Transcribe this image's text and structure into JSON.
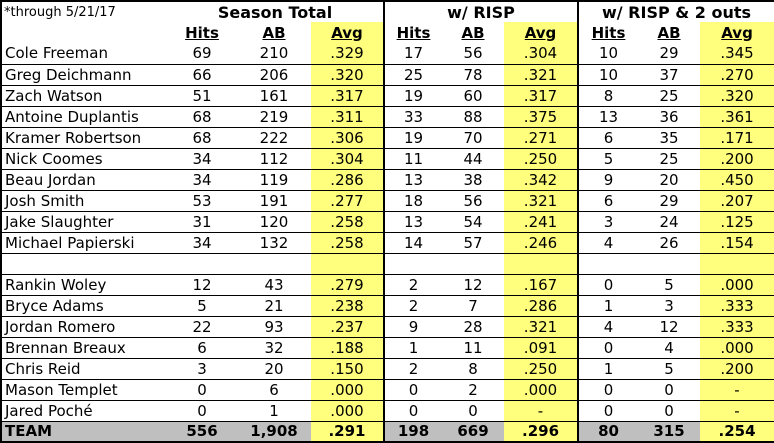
{
  "chart_data": {
    "type": "table",
    "note": "*through 5/21/17",
    "column_groups": [
      "Season Total",
      "w/ RISP",
      "w/ RISP & 2 outs"
    ],
    "sub_columns": [
      "Hits",
      "AB",
      "Avg"
    ],
    "rows": [
      {
        "name": "Cole Freeman",
        "values": [
          "69",
          "210",
          ".329",
          "17",
          "56",
          ".304",
          "10",
          "29",
          ".345"
        ]
      },
      {
        "name": "Greg Deichmann",
        "values": [
          "66",
          "206",
          ".320",
          "25",
          "78",
          ".321",
          "10",
          "37",
          ".270"
        ]
      },
      {
        "name": "Zach Watson",
        "values": [
          "51",
          "161",
          ".317",
          "19",
          "60",
          ".317",
          "8",
          "25",
          ".320"
        ]
      },
      {
        "name": "Antoine Duplantis",
        "values": [
          "68",
          "219",
          ".311",
          "33",
          "88",
          ".375",
          "13",
          "36",
          ".361"
        ]
      },
      {
        "name": "Kramer Robertson",
        "values": [
          "68",
          "222",
          ".306",
          "19",
          "70",
          ".271",
          "6",
          "35",
          ".171"
        ]
      },
      {
        "name": "Nick Coomes",
        "values": [
          "34",
          "112",
          ".304",
          "11",
          "44",
          ".250",
          "5",
          "25",
          ".200"
        ]
      },
      {
        "name": "Beau Jordan",
        "values": [
          "34",
          "119",
          ".286",
          "13",
          "38",
          ".342",
          "9",
          "20",
          ".450"
        ]
      },
      {
        "name": "Josh Smith",
        "values": [
          "53",
          "191",
          ".277",
          "18",
          "56",
          ".321",
          "6",
          "29",
          ".207"
        ]
      },
      {
        "name": "Jake Slaughter",
        "values": [
          "31",
          "120",
          ".258",
          "13",
          "54",
          ".241",
          "3",
          "24",
          ".125"
        ]
      },
      {
        "name": "Michael Papierski",
        "values": [
          "34",
          "132",
          ".258",
          "14",
          "57",
          ".246",
          "4",
          "26",
          ".154"
        ]
      },
      {
        "name": "",
        "values": [
          "",
          "",
          "",
          "",
          "",
          "",
          "",
          "",
          ""
        ]
      },
      {
        "name": "Rankin Woley",
        "values": [
          "12",
          "43",
          ".279",
          "2",
          "12",
          ".167",
          "0",
          "5",
          ".000"
        ]
      },
      {
        "name": "Bryce Adams",
        "values": [
          "5",
          "21",
          ".238",
          "2",
          "7",
          ".286",
          "1",
          "3",
          ".333"
        ]
      },
      {
        "name": "Jordan Romero",
        "values": [
          "22",
          "93",
          ".237",
          "9",
          "28",
          ".321",
          "4",
          "12",
          ".333"
        ]
      },
      {
        "name": "Brennan Breaux",
        "values": [
          "6",
          "32",
          ".188",
          "1",
          "11",
          ".091",
          "0",
          "4",
          ".000"
        ]
      },
      {
        "name": "Chris Reid",
        "values": [
          "3",
          "20",
          ".150",
          "2",
          "8",
          ".250",
          "1",
          "5",
          ".200"
        ]
      },
      {
        "name": "Mason Templet",
        "values": [
          "0",
          "6",
          ".000",
          "0",
          "2",
          ".000",
          "0",
          "0",
          "-"
        ]
      },
      {
        "name": "Jared Poché",
        "values": [
          "0",
          "1",
          ".000",
          "0",
          "0",
          "-",
          "0",
          "0",
          "-"
        ]
      }
    ],
    "team_row": {
      "name": "TEAM",
      "values": [
        "556",
        "1,908",
        ".291",
        "198",
        "669",
        ".296",
        "80",
        "315",
        ".254"
      ]
    },
    "highlighted_columns": [
      "Avg"
    ],
    "colors": {
      "avg_highlight": "#FFFF7D",
      "team_row_bg": "#BFBFBF",
      "border": "#000000",
      "background": "#FFFFFF"
    }
  }
}
